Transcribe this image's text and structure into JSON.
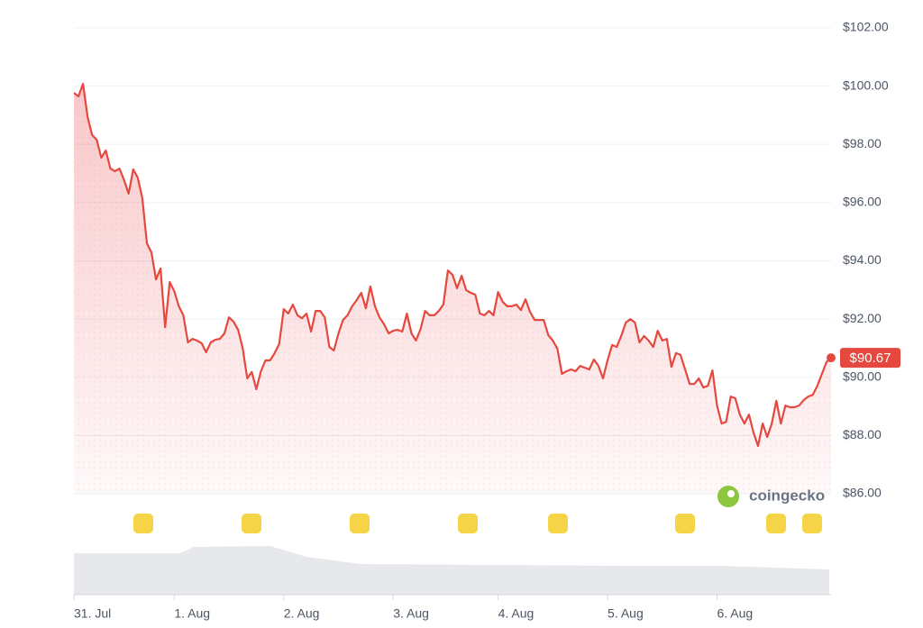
{
  "chart_data": {
    "type": "line",
    "series": [
      {
        "name": "Price",
        "color": "#e5483e",
        "last_value_label": "$90.67",
        "values": [
          99.77,
          99.65,
          100.08,
          98.94,
          98.32,
          98.16,
          97.54,
          97.79,
          97.17,
          97.08,
          97.17,
          96.77,
          96.31,
          97.14,
          96.86,
          96.15,
          94.6,
          94.29,
          93.36,
          93.74,
          91.72,
          93.27,
          92.96,
          92.44,
          92.13,
          91.2,
          91.32,
          91.26,
          91.17,
          90.86,
          91.2,
          91.29,
          91.32,
          91.51,
          92.06,
          91.91,
          91.63,
          91.01,
          89.96,
          90.18,
          89.59,
          90.21,
          90.58,
          90.58,
          90.83,
          91.14,
          92.34,
          92.19,
          92.5,
          92.13,
          92.03,
          92.19,
          91.57,
          92.28,
          92.28,
          92.06,
          91.04,
          90.92,
          91.51,
          91.97,
          92.13,
          92.44,
          92.65,
          92.9,
          92.37,
          93.12,
          92.44,
          92.06,
          91.82,
          91.51,
          91.6,
          91.63,
          91.57,
          92.19,
          91.51,
          91.26,
          91.66,
          92.28,
          92.13,
          92.13,
          92.28,
          92.5,
          93.67,
          93.52,
          93.06,
          93.49,
          92.99,
          92.9,
          92.84,
          92.19,
          92.13,
          92.28,
          92.13,
          92.93,
          92.59,
          92.44,
          92.44,
          92.5,
          92.31,
          92.68,
          92.25,
          91.97,
          91.97,
          91.97,
          91.45,
          91.26,
          90.98,
          90.12,
          90.21,
          90.27,
          90.21,
          90.39,
          90.33,
          90.27,
          90.61,
          90.39,
          89.96,
          90.58,
          91.11,
          91.04,
          91.42,
          91.88,
          92.0,
          91.88,
          91.2,
          91.42,
          91.26,
          91.04,
          91.6,
          91.26,
          91.32,
          90.36,
          90.83,
          90.77,
          90.27,
          89.77,
          89.77,
          89.96,
          89.65,
          89.71,
          90.24,
          89.03,
          88.41,
          88.47,
          89.34,
          89.28,
          88.72,
          88.41,
          88.72,
          88.1,
          87.64,
          88.41,
          87.95,
          88.41,
          89.19,
          88.41,
          89.03,
          88.97,
          88.97,
          89.03,
          89.22,
          89.34,
          89.4,
          89.71,
          90.12,
          90.52,
          90.67
        ]
      }
    ],
    "xlim": [
      0,
      166
    ],
    "xticks": [
      {
        "value": 0,
        "label": "31. Jul"
      },
      {
        "value": 22,
        "label": "1. Aug"
      },
      {
        "value": 46,
        "label": "2. Aug"
      },
      {
        "value": 70,
        "label": "3. Aug"
      },
      {
        "value": 93,
        "label": "4. Aug"
      },
      {
        "value": 117,
        "label": "5. Aug"
      },
      {
        "value": 141,
        "label": "6. Aug"
      }
    ],
    "ylim": [
      86,
      102
    ],
    "yticks": [
      {
        "value": 86,
        "label": "$86.00"
      },
      {
        "value": 88,
        "label": "$88.00"
      },
      {
        "value": 90,
        "label": "$90.00"
      },
      {
        "value": 92,
        "label": "$92.00"
      },
      {
        "value": 94,
        "label": "$94.00"
      },
      {
        "value": 96,
        "label": "$96.00"
      },
      {
        "value": 98,
        "label": "$98.00"
      },
      {
        "value": 100,
        "label": "$100.00"
      },
      {
        "value": 102,
        "label": "$102.00"
      }
    ],
    "grid": true,
    "watermark": "coingecko"
  }
}
